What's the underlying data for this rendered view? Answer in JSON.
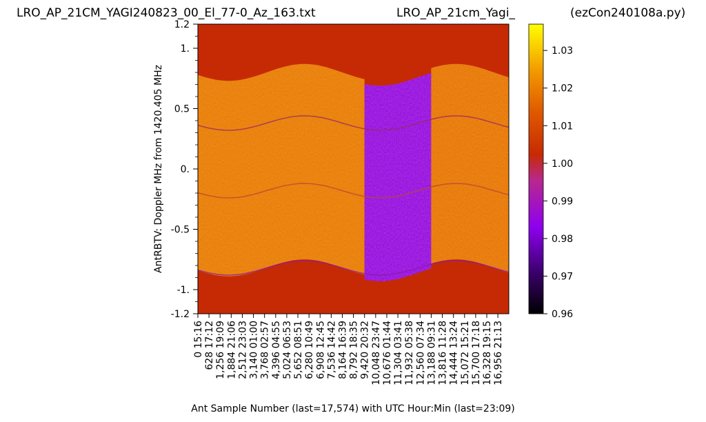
{
  "chart_data": {
    "type": "heatmap",
    "title_left": "LRO_AP_21CM_YAGI240823_00_El_77-0_Az_163.txt",
    "title_center": "LRO_AP_21cm_Yagi_",
    "title_right": "(ezCon240108a.py)",
    "xlabel": "Ant Sample Number (last=17,574) with UTC Hour:Min (last=23:09)",
    "ylabel": "AntRBTV:  Doppler MHz from 1420.405 MHz",
    "x_samples_last": 17574,
    "ylim": [
      -1.2,
      1.2
    ],
    "y_ticks": [
      {
        "value": 1.2,
        "label": "1.2"
      },
      {
        "value": 1.0,
        "label": "1."
      },
      {
        "value": 0.5,
        "label": "0.5"
      },
      {
        "value": 0.0,
        "label": "0."
      },
      {
        "value": -0.5,
        "label": "-0.5"
      },
      {
        "value": -1.0,
        "label": "-1."
      },
      {
        "value": -1.2,
        "label": "-1.2"
      }
    ],
    "x_ticks": [
      {
        "sample": 0,
        "label": "0  15:16"
      },
      {
        "sample": 628,
        "label": "628  17:12"
      },
      {
        "sample": 1256,
        "label": "1,256  19:09"
      },
      {
        "sample": 1884,
        "label": "1,884  21:06"
      },
      {
        "sample": 2512,
        "label": "2,512  23:03"
      },
      {
        "sample": 3140,
        "label": "3,140  01:00"
      },
      {
        "sample": 3768,
        "label": "3,768  02:57"
      },
      {
        "sample": 4396,
        "label": "4,396  04:55"
      },
      {
        "sample": 5024,
        "label": "5,024  06:53"
      },
      {
        "sample": 5652,
        "label": "5,652  08:51"
      },
      {
        "sample": 6280,
        "label": "6,280  10:49"
      },
      {
        "sample": 6908,
        "label": "6,908  12:45"
      },
      {
        "sample": 7536,
        "label": "7,536  14:42"
      },
      {
        "sample": 8164,
        "label": "8,164  16:39"
      },
      {
        "sample": 8792,
        "label": "8,792  18:35"
      },
      {
        "sample": 9420,
        "label": "9,420  20:32"
      },
      {
        "sample": 10048,
        "label": "10,048  23:47"
      },
      {
        "sample": 10676,
        "label": "10,676  01:44"
      },
      {
        "sample": 11304,
        "label": "11,304  03:41"
      },
      {
        "sample": 11932,
        "label": "11,932  05:38"
      },
      {
        "sample": 12560,
        "label": "12,560  07:34"
      },
      {
        "sample": 13188,
        "label": "13,188  09:31"
      },
      {
        "sample": 13816,
        "label": "13,816  11:28"
      },
      {
        "sample": 14444,
        "label": "14,444  13:24"
      },
      {
        "sample": 15072,
        "label": "15,072  15:21"
      },
      {
        "sample": 15700,
        "label": "15,700  17:18"
      },
      {
        "sample": 16328,
        "label": "16,328  19:15"
      },
      {
        "sample": 16956,
        "label": "16,956  21:13"
      }
    ],
    "colorbar": {
      "range": [
        0.96,
        1.037
      ],
      "ticks": [
        {
          "value": 1.03,
          "label": "1.03"
        },
        {
          "value": 1.02,
          "label": "1.02"
        },
        {
          "value": 1.01,
          "label": "1.01"
        },
        {
          "value": 1.0,
          "label": "1.00"
        },
        {
          "value": 0.99,
          "label": "0.99"
        },
        {
          "value": 0.98,
          "label": "0.98"
        },
        {
          "value": 0.97,
          "label": "0.97"
        },
        {
          "value": 0.96,
          "label": "0.96"
        }
      ],
      "colormap": "gnuplot"
    },
    "regions": [
      {
        "name": "left-band",
        "start_sample": 0,
        "end_sample": 9420,
        "value": 1.015
      },
      {
        "name": "low-sample-block",
        "start_sample": 9420,
        "end_sample": 13188,
        "value": 0.983
      },
      {
        "name": "right-band",
        "start_sample": 13188,
        "end_sample": 17574,
        "value": 1.014
      }
    ],
    "background_value": 1.0
  }
}
